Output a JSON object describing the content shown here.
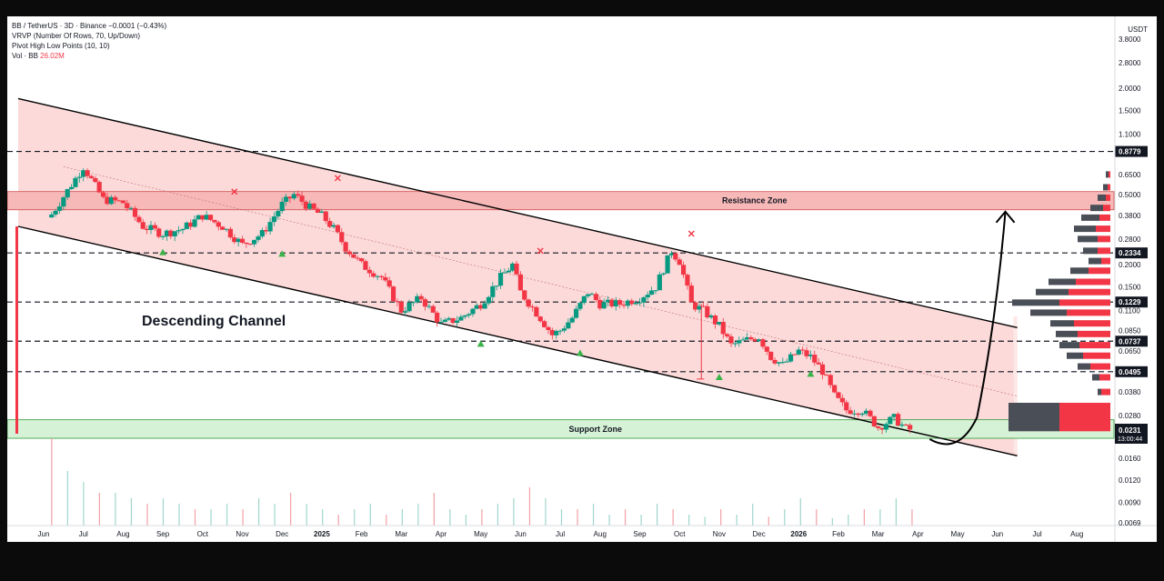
{
  "header": {
    "symbol_line": "BB / TetherUS · 3D · Binance",
    "change": "−0.0001 (−0.43%)",
    "indicator_vrvp": "VRVP (Number Of Rows, 70, Up/Down)",
    "indicator_pivot": "Pivot High Low Points (10, 10)",
    "volume_label": "Vol · BB",
    "volume_value": "26.02M"
  },
  "colors": {
    "up": "#089981",
    "down": "#f23645",
    "channel_fill": "#fbd3d3",
    "resistance_fill": "#f7b8b8",
    "support_fill": "#d6f2d6",
    "pivot_high": "#f23645",
    "pivot_low": "#3bb34a",
    "volume_profile_up": "#4a4f57",
    "volume_profile_down": "#f23645"
  },
  "chart_data": {
    "type": "candlestick",
    "y_scale": "log",
    "y_unit": "USDT",
    "y_range": [
      0.006,
      4.5
    ],
    "y_ticks": [
      "3.8000",
      "2.8000",
      "2.0000",
      "1.5000",
      "1.1000",
      "0.8779",
      "0.6500",
      "0.5000",
      "0.3800",
      "0.2800",
      "0.2334",
      "0.2000",
      "0.1500",
      "0.1229",
      "0.1100",
      "0.0850",
      "0.0737",
      "0.0650",
      "0.0495",
      "0.0380",
      "0.0280",
      "0.0231",
      "0.0160",
      "0.0120",
      "0.0090",
      "0.0069"
    ],
    "x_ticks": [
      "Jun",
      "Jul",
      "Aug",
      "Sep",
      "Oct",
      "Nov",
      "Dec",
      "2025",
      "Feb",
      "Mar",
      "Apr",
      "May",
      "Jun",
      "Jul",
      "Aug",
      "Sep",
      "Oct",
      "Nov",
      "Dec",
      "2026",
      "Feb",
      "Mar",
      "Apr",
      "May",
      "Jun",
      "Jul",
      "Aug"
    ],
    "price_path": [
      [
        0,
        0.33
      ],
      [
        1.0,
        0.72
      ],
      [
        1.5,
        0.47
      ],
      [
        2.0,
        0.45
      ],
      [
        2.5,
        0.33
      ],
      [
        3.0,
        0.3
      ],
      [
        3.5,
        0.32
      ],
      [
        4.0,
        0.38
      ],
      [
        4.5,
        0.33
      ],
      [
        5.0,
        0.26
      ],
      [
        5.5,
        0.3
      ],
      [
        6.0,
        0.44
      ],
      [
        6.3,
        0.5
      ],
      [
        6.7,
        0.42
      ],
      [
        7.0,
        0.38
      ],
      [
        7.3,
        0.32
      ],
      [
        7.6,
        0.25
      ],
      [
        8.0,
        0.2
      ],
      [
        8.5,
        0.17
      ],
      [
        9.0,
        0.11
      ],
      [
        9.5,
        0.13
      ],
      [
        10.0,
        0.092
      ],
      [
        10.5,
        0.1
      ],
      [
        11.0,
        0.12
      ],
      [
        11.5,
        0.17
      ],
      [
        11.8,
        0.2
      ],
      [
        12.0,
        0.14
      ],
      [
        12.5,
        0.1
      ],
      [
        12.8,
        0.08
      ],
      [
        13.0,
        0.085
      ],
      [
        13.3,
        0.1
      ],
      [
        13.7,
        0.14
      ],
      [
        14.0,
        0.12
      ],
      [
        14.5,
        0.12
      ],
      [
        15.0,
        0.13
      ],
      [
        15.4,
        0.15
      ],
      [
        15.8,
        0.24
      ],
      [
        16.0,
        0.21
      ],
      [
        16.3,
        0.12
      ],
      [
        16.6,
        0.11
      ],
      [
        17.0,
        0.09
      ],
      [
        17.3,
        0.07
      ],
      [
        17.7,
        0.075
      ],
      [
        18.0,
        0.078
      ],
      [
        18.3,
        0.06
      ],
      [
        18.6,
        0.054
      ],
      [
        19.0,
        0.065
      ],
      [
        19.3,
        0.06
      ],
      [
        19.6,
        0.05
      ],
      [
        19.9,
        0.036
      ],
      [
        20.2,
        0.03
      ],
      [
        20.6,
        0.03
      ],
      [
        21.0,
        0.024
      ],
      [
        21.4,
        0.027
      ],
      [
        21.7,
        0.0235
      ],
      [
        21.85,
        0.0231
      ]
    ],
    "volumes_m": [
      8,
      5,
      4,
      3,
      3,
      2.5,
      2,
      2.5,
      2,
      1.5,
      1.5,
      2,
      1.5,
      2.5,
      2,
      3,
      2,
      1.5,
      1,
      1.5,
      2,
      1,
      1.5,
      2,
      3,
      1.5,
      1,
      1.5,
      2,
      2.5,
      3.5,
      2.5,
      1.5,
      1.5,
      2,
      1,
      1.5,
      1,
      2,
      1.5,
      1,
      0.8,
      1.5,
      1,
      2,
      0.8,
      1.5,
      2.5,
      1.5,
      0.7,
      1,
      1.5,
      1.5,
      2.5,
      1.5
    ],
    "levels": [
      {
        "price": 0.8779,
        "label": "0.8779"
      },
      {
        "price": 0.2334,
        "label": "0.2334"
      },
      {
        "price": 0.1229,
        "label": "0.1229"
      },
      {
        "price": 0.0737,
        "label": "0.0737"
      },
      {
        "price": 0.0495,
        "label": "0.0495"
      }
    ],
    "current_price": {
      "value": "0.0231",
      "countdown": "13:00:44"
    },
    "resistance_zone": {
      "label": "Resistance Zone",
      "low": 0.41,
      "high": 0.52
    },
    "support_zone": {
      "label": "Support Zone",
      "low": 0.0215,
      "high": 0.0255
    },
    "channel": {
      "label": "Descending Channel",
      "upper": [
        [
          0,
          1.75
        ],
        [
          24.5,
          0.088
        ]
      ],
      "lower": [
        [
          0,
          0.33
        ],
        [
          24.5,
          0.0165
        ]
      ]
    },
    "pivot_highs": [
      [
        4.8,
        0.52
      ],
      [
        7.4,
        0.62
      ],
      [
        12.5,
        0.24
      ],
      [
        16.3,
        0.3
      ]
    ],
    "pivot_lows": [
      [
        3.0,
        0.235
      ],
      [
        6.0,
        0.23
      ],
      [
        11.0,
        0.071
      ],
      [
        13.5,
        0.063
      ],
      [
        17.0,
        0.046
      ],
      [
        19.3,
        0.048
      ]
    ],
    "projection": {
      "from": [
        22.8,
        0.0215
      ],
      "to": [
        24.2,
        0.4
      ]
    },
    "volume_profile": [
      {
        "price": 0.65,
        "up": 3,
        "down": 2
      },
      {
        "price": 0.55,
        "up": 5,
        "down": 3
      },
      {
        "price": 0.48,
        "up": 9,
        "down": 5
      },
      {
        "price": 0.42,
        "up": 14,
        "down": 8
      },
      {
        "price": 0.37,
        "up": 20,
        "down": 12
      },
      {
        "price": 0.32,
        "up": 24,
        "down": 16
      },
      {
        "price": 0.28,
        "up": 22,
        "down": 14
      },
      {
        "price": 0.24,
        "up": 16,
        "down": 14
      },
      {
        "price": 0.21,
        "up": 14,
        "down": 10
      },
      {
        "price": 0.185,
        "up": 20,
        "down": 24
      },
      {
        "price": 0.16,
        "up": 30,
        "down": 38
      },
      {
        "price": 0.14,
        "up": 36,
        "down": 46
      },
      {
        "price": 0.122,
        "up": 52,
        "down": 56
      },
      {
        "price": 0.107,
        "up": 40,
        "down": 48
      },
      {
        "price": 0.093,
        "up": 26,
        "down": 40
      },
      {
        "price": 0.081,
        "up": 24,
        "down": 36
      },
      {
        "price": 0.07,
        "up": 22,
        "down": 34
      },
      {
        "price": 0.061,
        "up": 18,
        "down": 30
      },
      {
        "price": 0.053,
        "up": 14,
        "down": 22
      },
      {
        "price": 0.046,
        "up": 8,
        "down": 12
      },
      {
        "price": 0.038,
        "up": 4,
        "down": 10
      },
      {
        "price": 0.03,
        "up": 56,
        "down": 56
      },
      {
        "price": 0.025,
        "up": 56,
        "down": 56
      }
    ]
  }
}
